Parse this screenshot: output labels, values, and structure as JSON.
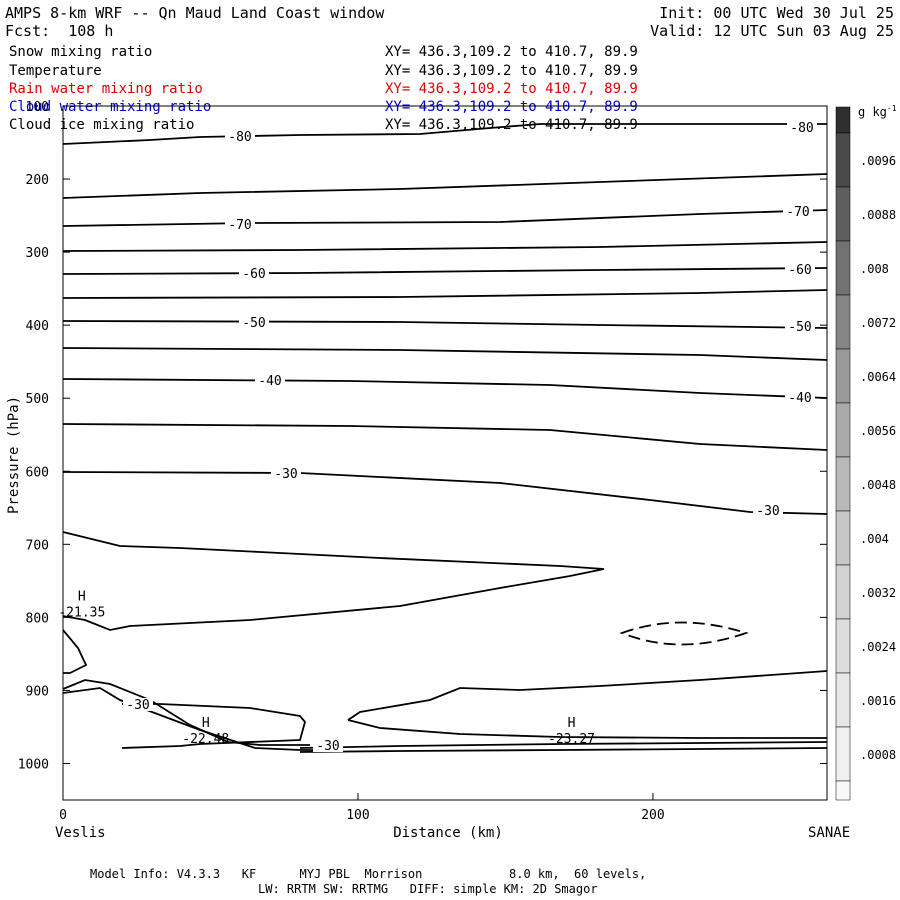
{
  "header": {
    "title": "AMPS 8-km WRF -- Qn Maud Land Coast window",
    "forecast": "Fcst:  108 h",
    "init": "Init: 00 UTC Wed 30 Jul 25",
    "valid": "Valid: 12 UTC Sun 03 Aug 25"
  },
  "legend": [
    {
      "name": "Snow mixing ratio",
      "xy": "XY= 436.3,109.2 to 410.7, 89.9",
      "color": "#000000"
    },
    {
      "name": "Temperature",
      "xy": "XY= 436.3,109.2 to 410.7, 89.9",
      "color": "#000000"
    },
    {
      "name": "Rain water mixing ratio",
      "xy": "XY= 436.3,109.2 to 410.7, 89.9",
      "color": "#e00000"
    },
    {
      "name": "Cloud water mixing ratio",
      "xy": "XY= 436.3,109.2 to 410.7, 89.9",
      "color": "#0000cc"
    },
    {
      "name": "Cloud ice mixing ratio",
      "xy": "XY= 436.3,109.2 to 410.7, 89.9",
      "color": "#000000"
    }
  ],
  "axes": {
    "ylabel": "Pressure (hPa)",
    "xlabel": "Distance (km)",
    "left_endpoint": "Veslis",
    "right_endpoint": "SANAE"
  },
  "colorbar": {
    "unit": "g kg",
    "unit_exp": "-1",
    "labels": [
      ".0096",
      ".0088",
      ".008",
      ".0072",
      ".0064",
      ".0056",
      ".0048",
      ".004",
      ".0032",
      ".0024",
      ".0016",
      ".0008"
    ]
  },
  "footer": {
    "line1": "Model Info: V4.3.3   KF      MYJ PBL  Morrison            8.0 km,  60 levels,",
    "line2": "LW: RRTM SW: RRTMG   DIFF: simple KM: 2D Smagor"
  },
  "chart_data": {
    "type": "contour",
    "xlim": [
      0,
      259
    ],
    "ylim": [
      1050,
      100
    ],
    "x_ticks": [
      0,
      100,
      200
    ],
    "y_ticks": [
      100,
      200,
      300,
      400,
      500,
      600,
      700,
      800,
      900,
      1000
    ],
    "grid": false,
    "contour_field": "Temperature",
    "contour_labels": [
      "-80",
      "-80",
      "-70",
      "-70",
      "-60",
      "-60",
      "-50",
      "-50",
      "-40",
      "-40",
      "-30",
      "-30",
      "-30",
      "-30"
    ],
    "highs": [
      {
        "mark": "H",
        "value": "-21.35",
        "x": 3,
        "p": 785
      },
      {
        "mark": "H",
        "value": "-22.48",
        "x": 45,
        "p": 958
      },
      {
        "mark": "H",
        "value": "-23.27",
        "x": 169,
        "p": 958
      }
    ]
  }
}
